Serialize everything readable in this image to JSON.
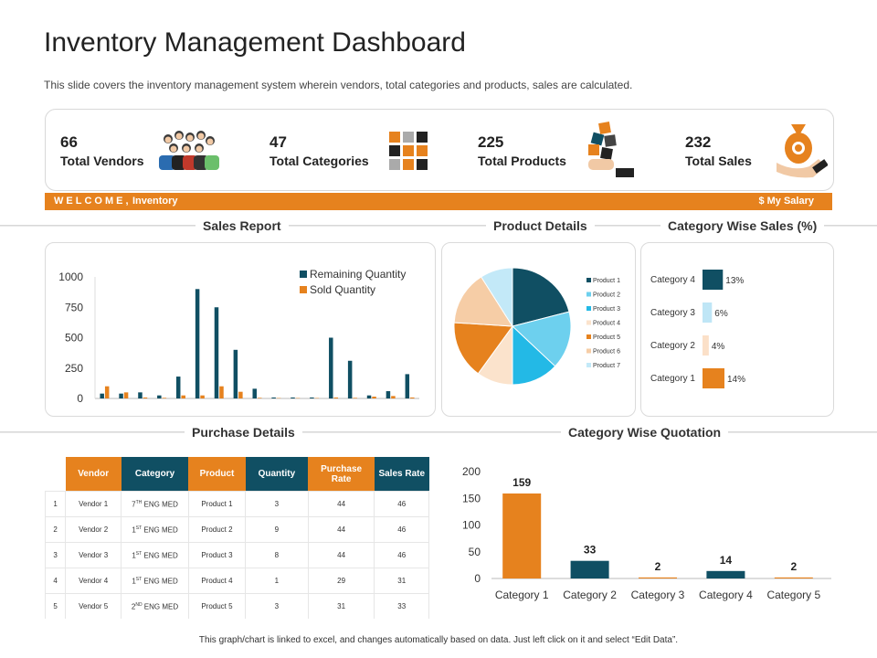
{
  "header": {
    "title": "Inventory Management Dashboard",
    "subtitle": "This slide covers the inventory management system wherein vendors, total categories and products, sales are calculated."
  },
  "kpis": [
    {
      "value": "66",
      "label": "Total Vendors",
      "icon": "vendors-group-icon"
    },
    {
      "value": "47",
      "label": "Total Categories",
      "icon": "categories-grid-icon"
    },
    {
      "value": "225",
      "label": "Total Products",
      "icon": "products-hand-icon"
    },
    {
      "value": "232",
      "label": "Total Sales",
      "icon": "money-bag-hand-icon"
    }
  ],
  "welcome": {
    "greeting": "WELCOME,",
    "name": "Inventory",
    "salary": "$ My Salary"
  },
  "sections": {
    "sales_report": "Sales Report",
    "product_details": "Product Details",
    "category_wise_sales": "Category Wise Sales (%)",
    "purchase_details": "Purchase Details",
    "category_wise_quotation": "Category Wise Quotation"
  },
  "colors": {
    "orange": "#e6821e",
    "navy": "#104f63",
    "light_blue": "#bfe6f6"
  },
  "purchase_table": {
    "headers": [
      "Vendor",
      "Category",
      "Product",
      "Quantity",
      "Purchase Rate",
      "Sales Rate"
    ],
    "rows": [
      {
        "idx": "1",
        "vendor": "Vendor 1",
        "cat_num": "7",
        "cat_sup": "TH",
        "cat_rest": " ENG MED",
        "product": "Product 1",
        "quantity": "3",
        "purchase_rate": "44",
        "sales_rate": "46"
      },
      {
        "idx": "2",
        "vendor": "Vendor 2",
        "cat_num": "1",
        "cat_sup": "ST",
        "cat_rest": " ENG MED",
        "product": "Product 2",
        "quantity": "9",
        "purchase_rate": "44",
        "sales_rate": "46"
      },
      {
        "idx": "3",
        "vendor": "Vendor 3",
        "cat_num": "1",
        "cat_sup": "ST",
        "cat_rest": " ENG MED",
        "product": "Product 3",
        "quantity": "8",
        "purchase_rate": "44",
        "sales_rate": "46"
      },
      {
        "idx": "4",
        "vendor": "Vendor 4",
        "cat_num": "1",
        "cat_sup": "ST",
        "cat_rest": " ENG MED",
        "product": "Product 4",
        "quantity": "1",
        "purchase_rate": "29",
        "sales_rate": "31"
      },
      {
        "idx": "5",
        "vendor": "Vendor 5",
        "cat_num": "2",
        "cat_sup": "ND",
        "cat_rest": " ENG MED",
        "product": "Product 5",
        "quantity": "3",
        "purchase_rate": "31",
        "sales_rate": "33"
      }
    ]
  },
  "footer": "This graph/chart is linked to excel, and changes automatically based on data. Just left click on it and select “Edit Data”.",
  "chart_data": [
    {
      "type": "bar",
      "title": "Sales Report",
      "ylim": [
        0,
        1000
      ],
      "yticks": [
        "0",
        "250",
        "500",
        "750",
        "1000"
      ],
      "grid": false,
      "legend_position": "top-right",
      "series": [
        {
          "name": "Remaining Quantity",
          "color": "#104f63",
          "values": [
            40,
            40,
            50,
            25,
            180,
            900,
            750,
            400,
            80,
            8,
            8,
            8,
            500,
            310,
            25,
            60,
            200
          ]
        },
        {
          "name": "Sold Quantity",
          "color": "#e6821e",
          "values": [
            100,
            50,
            8,
            5,
            25,
            25,
            100,
            55,
            5,
            3,
            3,
            3,
            8,
            5,
            15,
            20,
            8
          ]
        }
      ]
    },
    {
      "type": "pie",
      "title": "Product Details",
      "legend_position": "right",
      "labels": [
        "Product 1",
        "Product 2",
        "Product 3",
        "Product 4",
        "Product 5",
        "Product 6",
        "Product 7"
      ],
      "values": [
        21,
        16,
        13,
        10,
        16,
        15,
        9
      ],
      "colors": [
        "#104f63",
        "#6dd0ee",
        "#23b9e6",
        "#fbe3cc",
        "#e6821e",
        "#f6cda6",
        "#c3e9f8"
      ]
    },
    {
      "type": "bar",
      "title": "Category Wise Sales (%)",
      "orientation": "horizontal",
      "categories": [
        "Category 4",
        "Category 3",
        "Category 2",
        "Category 1"
      ],
      "values": [
        13,
        6,
        4,
        14
      ],
      "value_labels": [
        "13%",
        "6%",
        "4%",
        "14%"
      ],
      "colors": [
        "#104f63",
        "#bfe6f6",
        "#fbe0c8",
        "#e6821e"
      ]
    },
    {
      "type": "bar",
      "title": "Category Wise Quotation",
      "categories": [
        "Category 1",
        "Category 2",
        "Category 3",
        "Category 4",
        "Category 5"
      ],
      "values": [
        159,
        33,
        2,
        14,
        2
      ],
      "colors": [
        "#e6821e",
        "#104f63",
        "#e6821e",
        "#104f63",
        "#e6821e"
      ],
      "ylim": [
        0,
        200
      ],
      "yticks": [
        "0",
        "50",
        "100",
        "150",
        "200"
      ],
      "grid": false
    }
  ]
}
